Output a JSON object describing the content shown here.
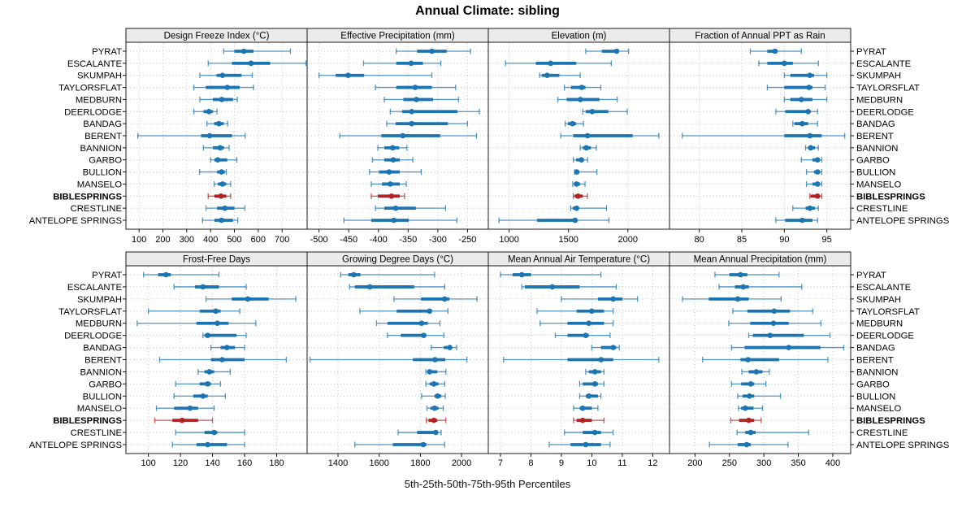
{
  "chart_data": {
    "type": "dotplot-percentiles",
    "title": "Annual Climate: sibling",
    "caption": "5th-25th-50th-75th-95th Percentiles",
    "percentiles": [
      "5th",
      "25th",
      "50th",
      "75th",
      "95th"
    ],
    "legend_position": "none",
    "gridlines": "dotted",
    "grid": {
      "rows": 2,
      "cols": 4
    },
    "stations": [
      "PYRAT",
      "ESCALANTE",
      "SKUMPAH",
      "TAYLORSFLAT",
      "MEDBURN",
      "DEERLODGE",
      "BANDAG",
      "BERENT",
      "BANNION",
      "GARBO",
      "BULLION",
      "MANSELO",
      "BIBLESPRINGS",
      "CRESTLINE",
      "ANTELOPE SPRINGS"
    ],
    "highlight_station": "BIBLESPRINGS",
    "colors": {
      "series": "#1a75b2",
      "highlight": "#b22222",
      "grid": "#c8c8c8",
      "strip_bg": "#ebebeb",
      "border": "#1a1a1a"
    },
    "panels": [
      {
        "title": "Design Freeze Index (°C)",
        "ticks": [
          100,
          200,
          300,
          400,
          500,
          600,
          700
        ],
        "domain": [
          45,
          805
        ],
        "values": [
          [
            455,
            500,
            540,
            580,
            735
          ],
          [
            390,
            490,
            570,
            650,
            800
          ],
          [
            355,
            425,
            450,
            530,
            575
          ],
          [
            330,
            380,
            470,
            522,
            580
          ],
          [
            355,
            410,
            447,
            494,
            512
          ],
          [
            330,
            370,
            393,
            410,
            427
          ],
          [
            385,
            415,
            435,
            455,
            472
          ],
          [
            95,
            360,
            396,
            490,
            545
          ],
          [
            370,
            410,
            440,
            456,
            478
          ],
          [
            400,
            416,
            430,
            470,
            510
          ],
          [
            354,
            427,
            446,
            460,
            466
          ],
          [
            415,
            431,
            450,
            466,
            484
          ],
          [
            390,
            416,
            444,
            466,
            484
          ],
          [
            381,
            427,
            460,
            500,
            544
          ],
          [
            366,
            416,
            446,
            494,
            514
          ]
        ]
      },
      {
        "title": "Effective Precipitation (mm)",
        "ticks": [
          -500,
          -450,
          -400,
          -350,
          -300,
          -250
        ],
        "domain": [
          -520,
          -215
        ],
        "values": [
          [
            -370,
            -335,
            -310,
            -285,
            -245
          ],
          [
            -425,
            -370,
            -345,
            -325,
            -295
          ],
          [
            -500,
            -472,
            -451,
            -424,
            -310
          ],
          [
            -405,
            -370,
            -338,
            -310,
            -270
          ],
          [
            -390,
            -358,
            -336,
            -308,
            -265
          ],
          [
            -380,
            -360,
            -344,
            -267,
            -230
          ],
          [
            -386,
            -371,
            -344,
            -283,
            -250
          ],
          [
            -465,
            -395,
            -359,
            -296,
            -235
          ],
          [
            -401,
            -390,
            -376,
            -365,
            -352
          ],
          [
            -410,
            -390,
            -375,
            -364,
            -342
          ],
          [
            -415,
            -399,
            -382,
            -364,
            -328
          ],
          [
            -412,
            -394,
            -380,
            -364,
            -353
          ],
          [
            -412,
            -401,
            -378,
            -364,
            -356
          ],
          [
            -405,
            -390,
            -371,
            -337,
            -287
          ],
          [
            -458,
            -412,
            -374,
            -349,
            -268
          ]
        ]
      },
      {
        "title": "Elevation (m)",
        "ticks": [
          1000,
          1500,
          2000
        ],
        "domain": [
          825,
          2350
        ],
        "values": [
          [
            1645,
            1780,
            1905,
            1925,
            2005
          ],
          [
            970,
            1225,
            1350,
            1565,
            1860
          ],
          [
            1257,
            1275,
            1320,
            1423,
            1598
          ],
          [
            1465,
            1520,
            1612,
            1643,
            1772
          ],
          [
            1410,
            1485,
            1600,
            1760,
            1910
          ],
          [
            1620,
            1645,
            1700,
            1835,
            1995
          ],
          [
            1473,
            1495,
            1534,
            1564,
            1625
          ],
          [
            1435,
            1540,
            1660,
            2040,
            2260
          ],
          [
            1598,
            1620,
            1650,
            1689,
            1734
          ],
          [
            1541,
            1564,
            1609,
            1620,
            1661
          ],
          [
            1552,
            1559,
            1570,
            1586,
            1739
          ],
          [
            1536,
            1545,
            1568,
            1598,
            1639
          ],
          [
            1540,
            1552,
            1580,
            1620,
            1659
          ],
          [
            1518,
            1536,
            1568,
            1586,
            1820
          ],
          [
            915,
            1235,
            1555,
            1575,
            1840
          ]
        ]
      },
      {
        "title": "Fraction of Annual PPT as Rain",
        "ticks": [
          80,
          85,
          90,
          95
        ],
        "domain": [
          76.5,
          97.8
        ],
        "values": [
          [
            86,
            88,
            88.9,
            89.2,
            92
          ],
          [
            87,
            88,
            90,
            91,
            94
          ],
          [
            90,
            90.7,
            93,
            93.5,
            95
          ],
          [
            88,
            90,
            92.9,
            93.3,
            94.8
          ],
          [
            90,
            90.7,
            92,
            93.3,
            95
          ],
          [
            89,
            90.1,
            92.8,
            93.1,
            93.9
          ],
          [
            91,
            91.2,
            92.1,
            92.8,
            93.9
          ],
          [
            78,
            90,
            93,
            94.4,
            97.1
          ],
          [
            92.5,
            92.8,
            93.1,
            93.6,
            94
          ],
          [
            92,
            93.3,
            93.9,
            94.1,
            94.4
          ],
          [
            92.6,
            93.5,
            93.9,
            94.2,
            94.4
          ],
          [
            92.6,
            93.3,
            93.9,
            94.2,
            94.4
          ],
          [
            93,
            93.1,
            93.9,
            94.1,
            94.4
          ],
          [
            91,
            92.5,
            93,
            93.6,
            94
          ],
          [
            89,
            90.1,
            92.1,
            93.3,
            93.9
          ]
        ]
      },
      {
        "title": "Frost-Free Days",
        "ticks": [
          100,
          120,
          140,
          160,
          180
        ],
        "domain": [
          86,
          199
        ],
        "values": [
          [
            97,
            106,
            111,
            114,
            144
          ],
          [
            116,
            129,
            134,
            144,
            161
          ],
          [
            136,
            152,
            162,
            175,
            192
          ],
          [
            100,
            132,
            142,
            145,
            157
          ],
          [
            93,
            130,
            143,
            150,
            167
          ],
          [
            134,
            135,
            137,
            155,
            161
          ],
          [
            139,
            145,
            149,
            154,
            160
          ],
          [
            107,
            139,
            146,
            160,
            186
          ],
          [
            131,
            135,
            138,
            141,
            151
          ],
          [
            117,
            132,
            137,
            139,
            145
          ],
          [
            116,
            128,
            134,
            137,
            148
          ],
          [
            105,
            116,
            126,
            131,
            141
          ],
          [
            104,
            115,
            121,
            131,
            140
          ],
          [
            117,
            135,
            141,
            143,
            160
          ],
          [
            115,
            130,
            137,
            149,
            160
          ]
        ]
      },
      {
        "title": "Growing Degree Days (°C)",
        "ticks": [
          1400,
          1600,
          1800,
          2000
        ],
        "domain": [
          1250,
          2130
        ],
        "values": [
          [
            1413,
            1450,
            1476,
            1509,
            1869
          ],
          [
            1456,
            1482,
            1554,
            1770,
            1918
          ],
          [
            1672,
            1803,
            1918,
            1941,
            2075
          ],
          [
            1506,
            1685,
            1845,
            1856,
            1934
          ],
          [
            1587,
            1640,
            1806,
            1836,
            1895
          ],
          [
            1640,
            1705,
            1816,
            1829,
            1914
          ],
          [
            1853,
            1914,
            1943,
            1954,
            1976
          ],
          [
            1264,
            1764,
            1871,
            1921,
            2026
          ],
          [
            1827,
            1836,
            1845,
            1882,
            1924
          ],
          [
            1827,
            1845,
            1866,
            1888,
            1918
          ],
          [
            1806,
            1869,
            1884,
            1901,
            1921
          ],
          [
            1832,
            1849,
            1869,
            1888,
            1911
          ],
          [
            1829,
            1840,
            1866,
            1882,
            1924
          ],
          [
            1692,
            1784,
            1875,
            1882,
            1901
          ],
          [
            1482,
            1666,
            1814,
            1829,
            1918
          ]
        ]
      },
      {
        "title": "Mean Annual Air Temperature (°C)",
        "ticks": [
          7,
          8,
          9,
          10,
          11,
          12
        ],
        "domain": [
          6.6,
          12.55
        ],
        "values": [
          [
            7.0,
            7.4,
            7.7,
            8.0,
            10.3
          ],
          [
            7.7,
            7.8,
            8.7,
            9.6,
            10.8
          ],
          [
            9.0,
            10.2,
            10.7,
            11.0,
            11.5
          ],
          [
            8.2,
            9.5,
            10.0,
            10.4,
            10.7
          ],
          [
            8.3,
            9.2,
            9.9,
            10.4,
            10.7
          ],
          [
            8.8,
            9.2,
            9.8,
            9.9,
            10.6
          ],
          [
            10.0,
            10.3,
            10.7,
            10.8,
            10.9
          ],
          [
            7.1,
            9.2,
            10.3,
            10.7,
            12.2
          ],
          [
            9.8,
            9.9,
            10.1,
            10.3,
            10.4
          ],
          [
            9.6,
            9.7,
            10.1,
            10.2,
            10.4
          ],
          [
            9.6,
            9.8,
            9.9,
            10.2,
            10.3
          ],
          [
            9.4,
            9.6,
            9.7,
            10.0,
            10.2
          ],
          [
            9.4,
            9.5,
            9.7,
            10.0,
            10.4
          ],
          [
            9.1,
            9.7,
            10.1,
            10.3,
            10.7
          ],
          [
            8.6,
            9.3,
            9.8,
            10.3,
            10.6
          ]
        ]
      },
      {
        "title": "Mean Annual Precipitation (mm)",
        "ticks": [
          200,
          250,
          300,
          350,
          400
        ],
        "domain": [
          163,
          426
        ],
        "values": [
          [
            229,
            250,
            266,
            276,
            322
          ],
          [
            235,
            258,
            270,
            278,
            355
          ],
          [
            182,
            220,
            262,
            278,
            325
          ],
          [
            255,
            276,
            315,
            338,
            371
          ],
          [
            249,
            280,
            314,
            336,
            383
          ],
          [
            278,
            284,
            309,
            358,
            396
          ],
          [
            253,
            272,
            336,
            382,
            416
          ],
          [
            211,
            266,
            277,
            322,
            393
          ],
          [
            268,
            278,
            289,
            298,
            308
          ],
          [
            253,
            267,
            281,
            286,
            303
          ],
          [
            262,
            269,
            279,
            286,
            324
          ],
          [
            263,
            267,
            273,
            285,
            298
          ],
          [
            252,
            264,
            278,
            286,
            296
          ],
          [
            261,
            273,
            281,
            288,
            365
          ],
          [
            221,
            262,
            275,
            281,
            335
          ]
        ]
      }
    ]
  }
}
